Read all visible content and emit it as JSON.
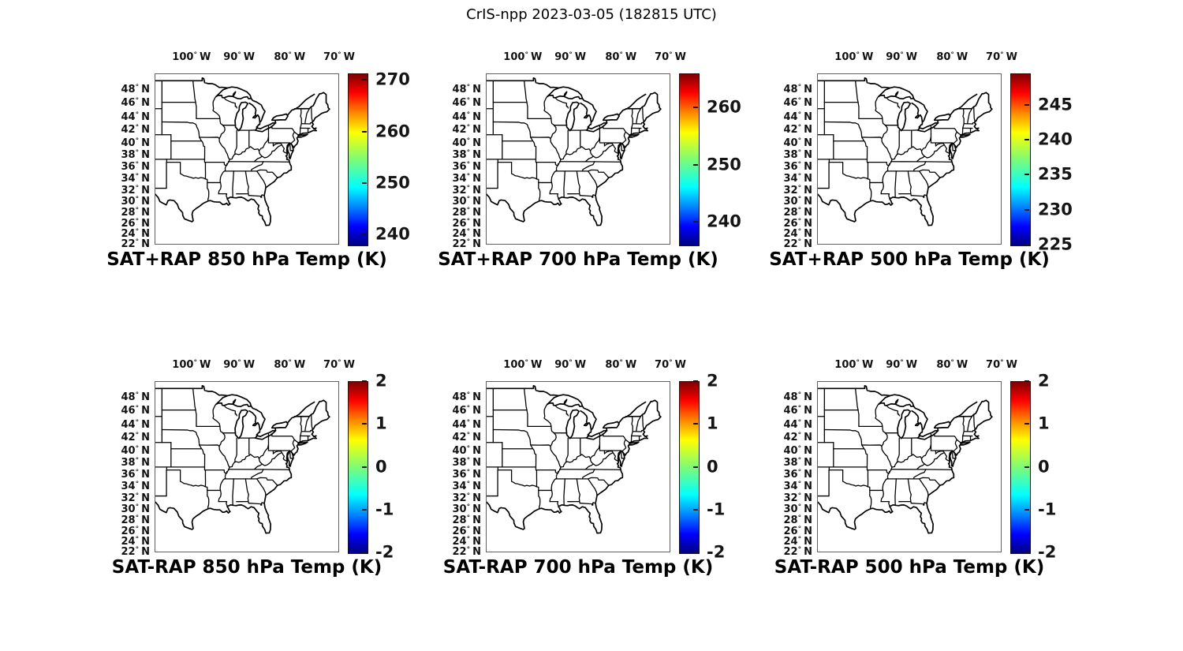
{
  "figure_title": "CrIS-npp 2023-03-05 (182815 UTC)",
  "axes": {
    "lon_tick_labels": [
      "100° W",
      "90° W",
      "80° W",
      "70° W"
    ],
    "lat_tick_labels": [
      "48° N",
      "46° N",
      "44° N",
      "42° N",
      "40° N",
      "38° N",
      "36° N",
      "34° N",
      "32° N",
      "30° N",
      "28° N",
      "26° N",
      "24° N",
      "22° N"
    ]
  },
  "chart_data": {
    "type": "map",
    "title": "CrIS-npp 2023-03-05 (182815 UTC)",
    "subplot_grid": {
      "rows": 2,
      "cols": 3
    },
    "colormap": "jet",
    "map_extent": {
      "lon_min_deg_w": 105,
      "lon_max_deg_w": 65,
      "lat_min_deg_n": 22,
      "lat_max_deg_n": 50
    },
    "basemap": "US state boundaries and coastline, no data overlay visible",
    "panels": [
      {
        "title": "SAT+RAP 850 hPa Temp (K)",
        "quantity": "SAT+RAP temperature",
        "level_hPa": 850,
        "units": "K",
        "colorbar": {
          "vmin": 238,
          "vmax": 271.3,
          "ticks": [
            270,
            260,
            250,
            240
          ]
        }
      },
      {
        "title": "SAT+RAP 700 hPa Temp (K)",
        "quantity": "SAT+RAP temperature",
        "level_hPa": 700,
        "units": "K",
        "colorbar": {
          "vmin": 236,
          "vmax": 266,
          "ticks": [
            260,
            250,
            240
          ]
        }
      },
      {
        "title": "SAT+RAP 500 hPa Temp (K)",
        "quantity": "SAT+RAP temperature",
        "level_hPa": 500,
        "units": "K",
        "colorbar": {
          "vmin": 225,
          "vmax": 249.5,
          "ticks": [
            245,
            240,
            235,
            230,
            225
          ]
        }
      },
      {
        "title": "SAT-RAP 850 hPa Temp (K)",
        "quantity": "SAT-RAP temperature difference",
        "level_hPa": 850,
        "units": "K",
        "colorbar": {
          "vmin": -2,
          "vmax": 2,
          "ticks": [
            2,
            1,
            0,
            -1,
            -2
          ]
        }
      },
      {
        "title": "SAT-RAP 700 hPa Temp (K)",
        "quantity": "SAT-RAP temperature difference",
        "level_hPa": 700,
        "units": "K",
        "colorbar": {
          "vmin": -2,
          "vmax": 2,
          "ticks": [
            2,
            1,
            0,
            -1,
            -2
          ]
        }
      },
      {
        "title": "SAT-RAP 500 hPa Temp (K)",
        "quantity": "SAT-RAP temperature difference",
        "level_hPa": 500,
        "units": "K",
        "colorbar": {
          "vmin": -2,
          "vmax": 2,
          "ticks": [
            2,
            1,
            0,
            -1,
            -2
          ]
        }
      }
    ]
  }
}
